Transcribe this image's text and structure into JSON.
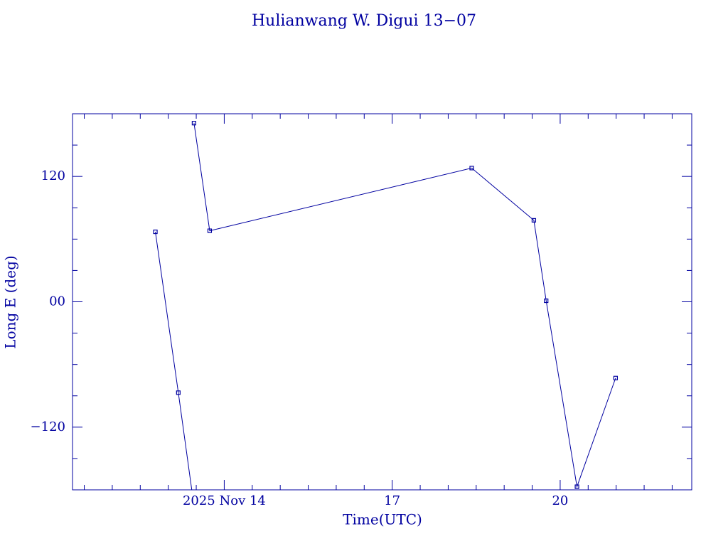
{
  "chart_data": {
    "type": "line",
    "title": "Hulianwang W. Digui 13−07",
    "x_label": "Time(UTC)",
    "y_label": "Long E (deg)",
    "x": [
      12.77,
      13.18,
      13.42,
      null,
      13.46,
      13.74,
      18.42,
      19.53,
      19.75,
      20.3,
      20.99
    ],
    "series": [
      {
        "color": "#0000a0",
        "values": [
          67,
          -87,
          -180,
          null,
          171,
          68,
          128,
          78,
          1,
          -177,
          -73
        ]
      }
    ],
    "xlim": [
      11.29,
      22.35
    ],
    "xticks": [
      {
        "value": 14,
        "label": "2025 Nov 14"
      },
      17,
      20
    ],
    "xminorticks": [
      11.5,
      12,
      12.5,
      13,
      13.5,
      14.5,
      15,
      15.5,
      16,
      16.5,
      17.5,
      18,
      18.5,
      19,
      19.5,
      20.5,
      21,
      21.5,
      22
    ],
    "ylim": [
      -180,
      180
    ],
    "yticks": [
      {
        "value": -120,
        "label": "−120"
      },
      {
        "value": 0,
        "label": "00"
      },
      120
    ],
    "yminorticks": [
      -150,
      -90,
      -60,
      -30,
      30,
      60,
      90,
      150
    ]
  }
}
